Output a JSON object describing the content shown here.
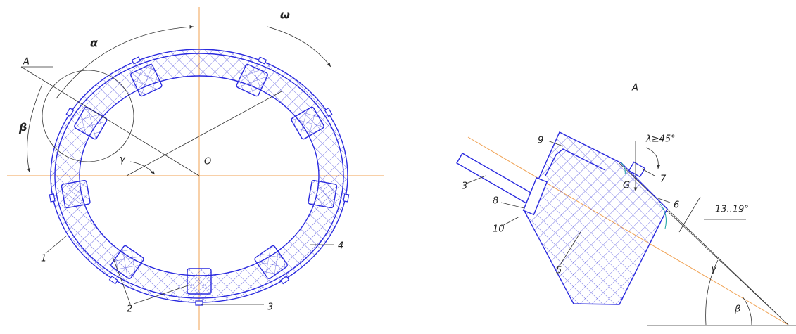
{
  "left_view": {
    "labels": {
      "alpha": "α",
      "omega": "ω",
      "section": "A",
      "beta": "β",
      "gamma": "γ",
      "center": "O",
      "part1": "1",
      "part2": "2",
      "part3": "3",
      "part4": "4"
    }
  },
  "right_view": {
    "title": "A",
    "labels": {
      "lambda": "λ≥45°",
      "part9": "9",
      "part7": "7",
      "gravity": "G",
      "part3": "3",
      "part8": "8",
      "part6": "6",
      "part10": "10",
      "angle_range": "13..19°",
      "part5": "5",
      "gamma": "γ",
      "beta": "β"
    }
  }
}
